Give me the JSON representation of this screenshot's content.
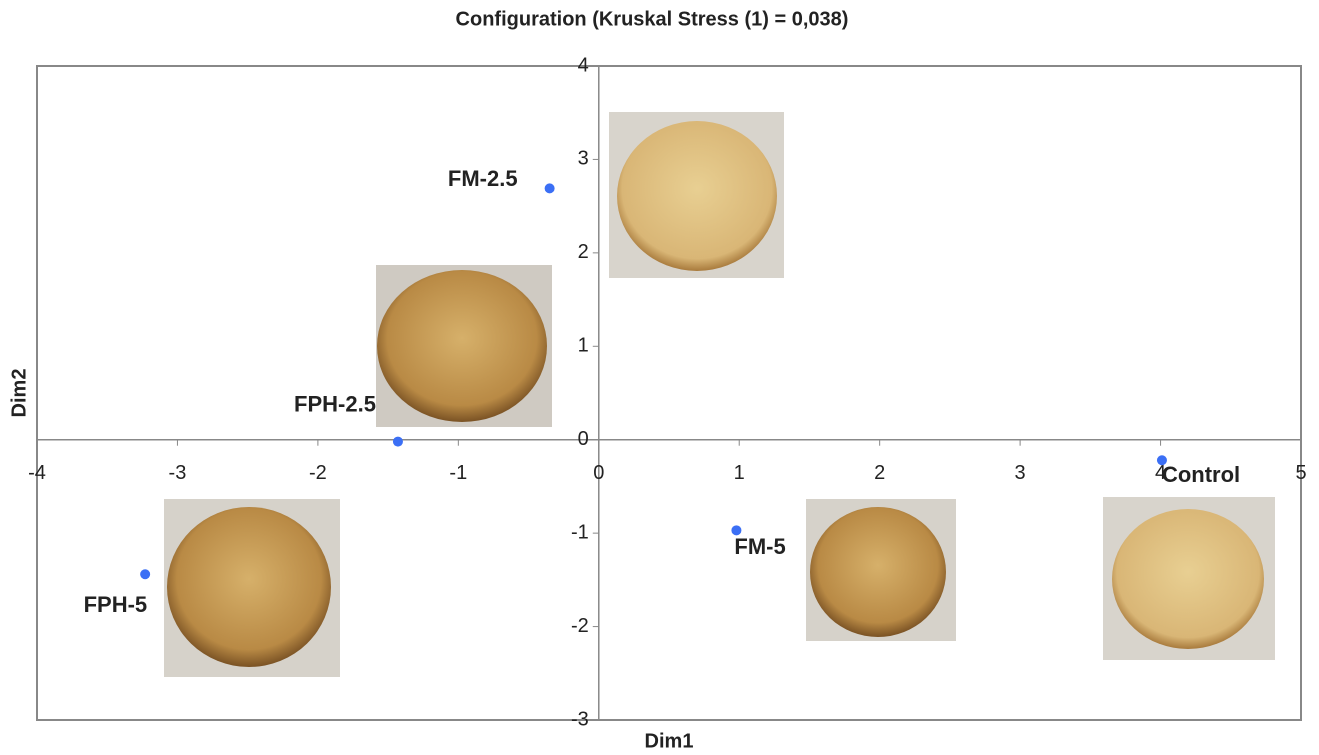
{
  "chart_data": {
    "type": "scatter",
    "title": "Configuration (Kruskal Stress (1) = 0,038)",
    "x_label": "Dim1",
    "y_label": "Dim2",
    "labels": [
      "FM-2.5",
      "FPH-2.5",
      "FPH-5",
      "FM-5",
      "Control"
    ],
    "x": [
      -0.35,
      -1.43,
      -3.23,
      0.98,
      4.01
    ],
    "values": [
      2.69,
      -0.02,
      -1.44,
      -0.97,
      -0.22
    ],
    "color": "#3b6ff5",
    "xlim": [
      -4,
      5
    ],
    "ylim": [
      -3,
      4
    ],
    "xticks": [
      -4,
      -3,
      -2,
      -1,
      0,
      1,
      2,
      3,
      4,
      5
    ],
    "yticks": [
      -3,
      -2,
      -1,
      0,
      1,
      2,
      3,
      4
    ]
  }
}
